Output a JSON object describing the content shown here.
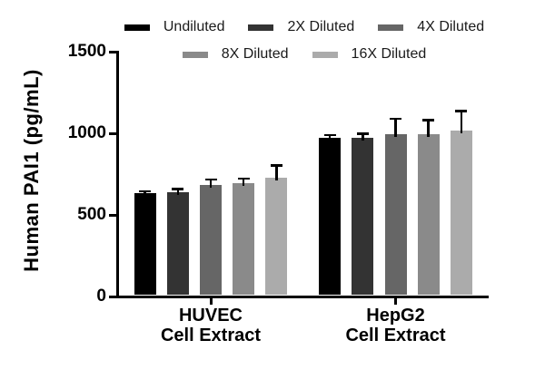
{
  "figure": {
    "background": "#ffffff",
    "text_color": "#000000",
    "axis_color": "#000000",
    "error_bar_color": "#000000"
  },
  "chart_data": {
    "type": "bar",
    "title": "",
    "xlabel": "",
    "ylabel": "Human PAI1 (pg/mL)",
    "ylim": [
      0,
      1500
    ],
    "yticks": [
      0,
      500,
      1000,
      1500
    ],
    "grid": false,
    "legend_position": "top",
    "legend_rows": [
      3,
      2
    ],
    "categories": [
      "HUVEC Cell Extract",
      "HepG2 Cell Extract"
    ],
    "category_lines": [
      [
        "HUVEC",
        "Cell Extract"
      ],
      [
        "HepG2",
        "Cell Extract"
      ]
    ],
    "series": [
      {
        "name": "Undiluted",
        "color": "#000000",
        "values": [
          635,
          970
        ],
        "errors_plus": [
          10,
          18
        ]
      },
      {
        "name": "2X Diluted",
        "color": "#333333",
        "values": [
          640,
          970
        ],
        "errors_plus": [
          18,
          28
        ]
      },
      {
        "name": "4X Diluted",
        "color": "#666666",
        "values": [
          685,
          995
        ],
        "errors_plus": [
          32,
          95
        ]
      },
      {
        "name": "8X Diluted",
        "color": "#8a8a8a",
        "values": [
          695,
          995
        ],
        "errors_plus": [
          28,
          85
        ]
      },
      {
        "name": "16X Diluted",
        "color": "#ababab",
        "values": [
          730,
          1015
        ],
        "errors_plus": [
          72,
          122
        ]
      }
    ]
  }
}
